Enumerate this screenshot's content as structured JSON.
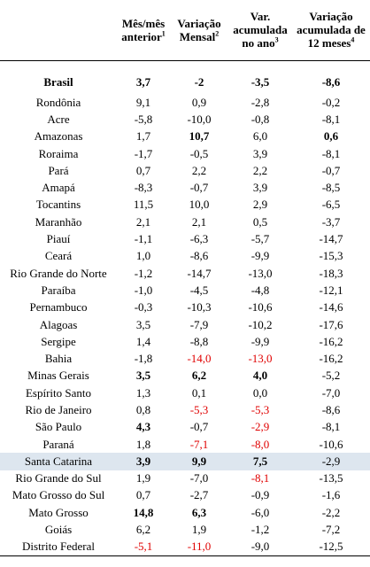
{
  "headers": [
    {
      "main": "",
      "sup": ""
    },
    {
      "main": "Mês/mês anterior",
      "sup": "1"
    },
    {
      "main": "Variação Mensal",
      "sup": "2"
    },
    {
      "main": "Var. acumulada no ano",
      "sup": "3"
    },
    {
      "main": "Variação acumulada de 12 meses",
      "sup": "4"
    }
  ],
  "brasil": {
    "label": "Brasil",
    "values": [
      "3,7",
      "-2",
      "-3,5",
      "-8,6"
    ]
  },
  "rows": [
    {
      "label": "Rondônia",
      "values": [
        "9,1",
        "0,9",
        "-2,8",
        "-0,2"
      ],
      "bold": [],
      "red": []
    },
    {
      "label": "Acre",
      "values": [
        "-5,8",
        "-10,0",
        "-0,8",
        "-8,1"
      ],
      "bold": [],
      "red": []
    },
    {
      "label": "Amazonas",
      "values": [
        "1,7",
        "10,7",
        "6,0",
        "0,6"
      ],
      "bold": [
        1,
        3
      ],
      "red": []
    },
    {
      "label": "Roraima",
      "values": [
        "-1,7",
        "-0,5",
        "3,9",
        "-8,1"
      ],
      "bold": [],
      "red": []
    },
    {
      "label": "Pará",
      "values": [
        "0,7",
        "2,2",
        "2,2",
        "-0,7"
      ],
      "bold": [],
      "red": []
    },
    {
      "label": "Amapá",
      "values": [
        "-8,3",
        "-0,7",
        "3,9",
        "-8,5"
      ],
      "bold": [],
      "red": []
    },
    {
      "label": "Tocantins",
      "values": [
        "11,5",
        "10,0",
        "2,9",
        "-6,5"
      ],
      "bold": [],
      "red": []
    },
    {
      "label": "Maranhão",
      "values": [
        "2,1",
        "2,1",
        "0,5",
        "-3,7"
      ],
      "bold": [],
      "red": []
    },
    {
      "label": "Piauí",
      "values": [
        "-1,1",
        "-6,3",
        "-5,7",
        "-14,7"
      ],
      "bold": [],
      "red": []
    },
    {
      "label": "Ceará",
      "values": [
        "1,0",
        "-8,6",
        "-9,9",
        "-15,3"
      ],
      "bold": [],
      "red": []
    },
    {
      "label": "Rio Grande do Norte",
      "values": [
        "-1,2",
        "-14,7",
        "-13,0",
        "-18,3"
      ],
      "bold": [],
      "red": []
    },
    {
      "label": "Paraíba",
      "values": [
        "-1,0",
        "-4,5",
        "-4,8",
        "-12,1"
      ],
      "bold": [],
      "red": []
    },
    {
      "label": "Pernambuco",
      "values": [
        "-0,3",
        "-10,3",
        "-10,6",
        "-14,6"
      ],
      "bold": [],
      "red": []
    },
    {
      "label": "Alagoas",
      "values": [
        "3,5",
        "-7,9",
        "-10,2",
        "-17,6"
      ],
      "bold": [],
      "red": []
    },
    {
      "label": "Sergipe",
      "values": [
        "1,4",
        "-8,8",
        "-9,9",
        "-16,2"
      ],
      "bold": [],
      "red": []
    },
    {
      "label": "Bahia",
      "values": [
        "-1,8",
        "-14,0",
        "-13,0",
        "-16,2"
      ],
      "bold": [],
      "red": [
        1,
        2
      ]
    },
    {
      "label": "Minas Gerais",
      "values": [
        "3,5",
        "6,2",
        "4,0",
        "-5,2"
      ],
      "bold": [
        0,
        1,
        2
      ],
      "red": []
    },
    {
      "label": "Espírito Santo",
      "values": [
        "1,3",
        "0,1",
        "0,0",
        "-7,0"
      ],
      "bold": [],
      "red": []
    },
    {
      "label": "Rio de Janeiro",
      "values": [
        "0,8",
        "-5,3",
        "-5,3",
        "-8,6"
      ],
      "bold": [],
      "red": [
        1,
        2
      ]
    },
    {
      "label": "São Paulo",
      "values": [
        "4,3",
        "-0,7",
        "-2,9",
        "-8,1"
      ],
      "bold": [
        0
      ],
      "red": [
        2
      ]
    },
    {
      "label": "Paraná",
      "values": [
        "1,8",
        "-7,1",
        "-8,0",
        "-10,6"
      ],
      "bold": [],
      "red": [
        1,
        2
      ]
    },
    {
      "label": "Santa Catarina",
      "values": [
        "3,9",
        "9,9",
        "7,5",
        "-2,9"
      ],
      "bold": [
        0,
        1,
        2
      ],
      "red": [],
      "highlight": true
    },
    {
      "label": "Rio Grande do Sul",
      "values": [
        "1,9",
        "-7,0",
        "-8,1",
        "-13,5"
      ],
      "bold": [],
      "red": [
        2
      ]
    },
    {
      "label": "Mato Grosso do Sul",
      "values": [
        "0,7",
        "-2,7",
        "-0,9",
        "-1,6"
      ],
      "bold": [],
      "red": []
    },
    {
      "label": "Mato Grosso",
      "values": [
        "14,8",
        "6,3",
        "-6,0",
        "-2,2"
      ],
      "bold": [
        0,
        1
      ],
      "red": []
    },
    {
      "label": "Goiás",
      "values": [
        "6,2",
        "1,9",
        "-1,2",
        "-7,2"
      ],
      "bold": [],
      "red": []
    },
    {
      "label": "Distrito Federal",
      "values": [
        "-5,1",
        "-11,0",
        "-9,0",
        "-12,5"
      ],
      "bold": [],
      "red": [
        0,
        1
      ]
    }
  ],
  "colors": {
    "red": "#e00000",
    "highlight": "#dde6ef"
  }
}
